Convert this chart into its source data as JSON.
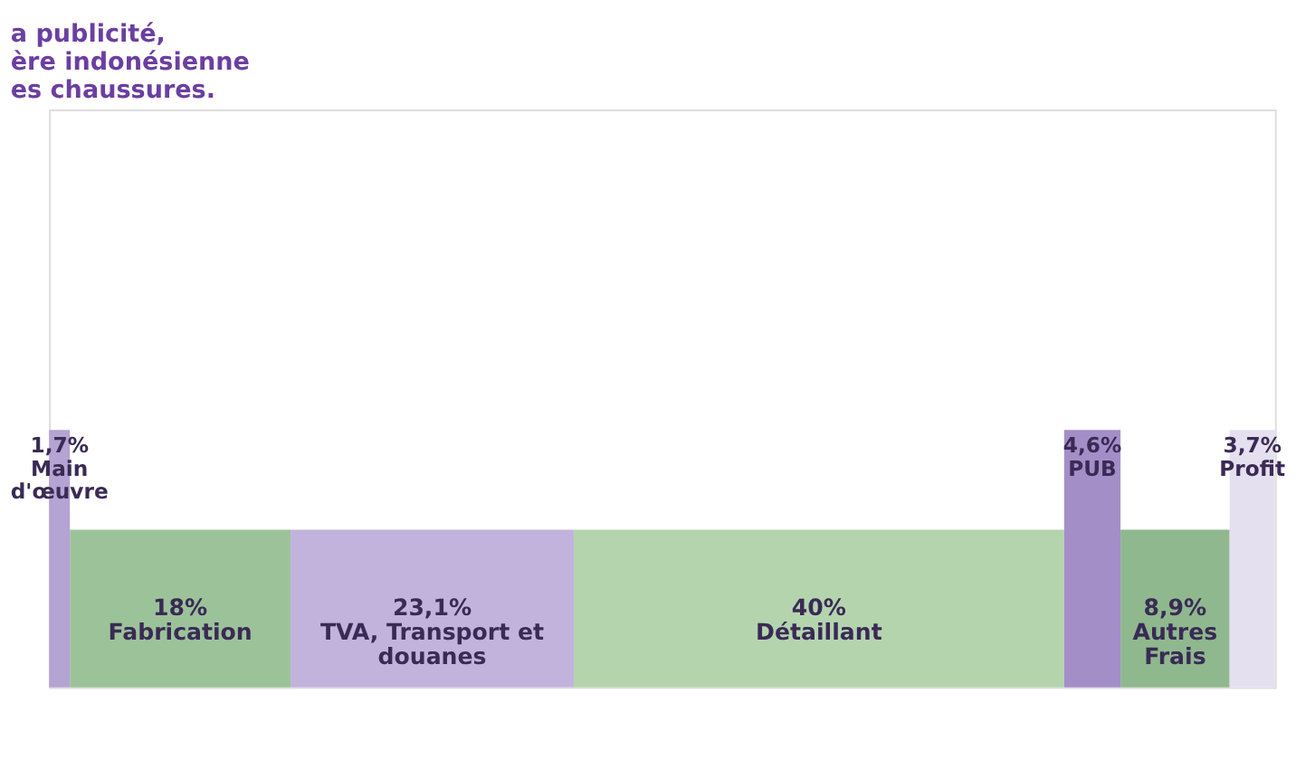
{
  "chart_data": {
    "type": "bar",
    "orientation": "horizontal",
    "stacked": true,
    "title": "a publicité,\nère indonésienne\nes chaussures.",
    "categories": [
      null
    ],
    "series": [
      {
        "name": "Main d'œuvre",
        "color": "#b4a3d3",
        "values": [
          1.7
        ],
        "value_labels": [
          "1,7%"
        ]
      },
      {
        "name": "Fabrication",
        "color": "#9cc29a",
        "values": [
          18
        ],
        "value_labels": [
          "18%"
        ]
      },
      {
        "name": "TVA, Transport et douanes",
        "color": "#c2b3dd",
        "values": [
          23.1
        ],
        "value_labels": [
          "23,1%"
        ]
      },
      {
        "name": "Détaillant",
        "color": "#b4d4ae",
        "values": [
          40
        ],
        "value_labels": [
          "40%"
        ]
      },
      {
        "name": "PUB",
        "color": "#a48ec8",
        "values": [
          4.6
        ],
        "value_labels": [
          "4,6%"
        ]
      },
      {
        "name": "Autres Frais",
        "color": "#8fb88e",
        "values": [
          8.9
        ],
        "value_labels": [
          "8,9%"
        ]
      },
      {
        "name": "Profit",
        "color": "#e4e0ef",
        "values": [
          3.7
        ],
        "value_labels": [
          "3,7%"
        ]
      }
    ],
    "legend": false,
    "tick_labels": false
  }
}
